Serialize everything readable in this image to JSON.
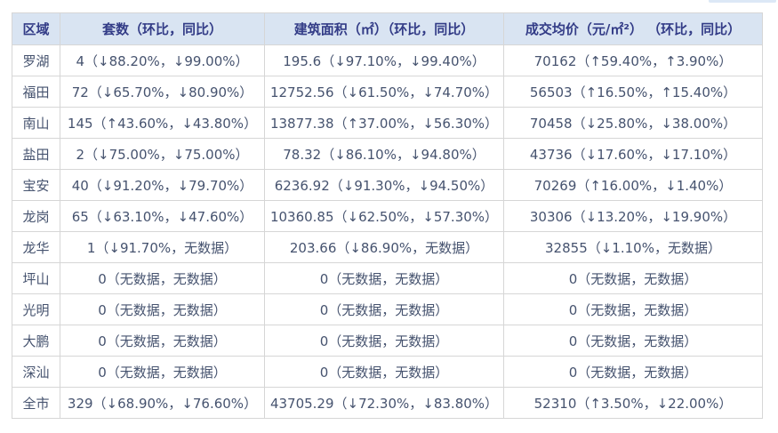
{
  "colors": {
    "header_bg": "#d9e4f2",
    "header_text": "#333c87",
    "body_text": "#46536f",
    "border": "#d6d6d6",
    "top_artifact": "#dce8f6"
  },
  "table": {
    "columns": [
      "区域",
      "套数（环比，同比）",
      "建筑面积（㎡）（环比，同比）",
      "成交均价（元/㎡²） （环比，同比）"
    ],
    "rows": [
      {
        "region": "罗湖",
        "units": "4（↓88.20%，↓99.00%）",
        "area": "195.6（↓97.10%，↓99.40%）",
        "price": "70162（↑59.40%，↑3.90%）"
      },
      {
        "region": "福田",
        "units": "72（↓65.70%，↓80.90%）",
        "area": "12752.56（↓61.50%，↓74.70%）",
        "price": "56503（↑16.50%，↑15.40%）"
      },
      {
        "region": "南山",
        "units": "145（↑43.60%，↓43.80%）",
        "area": "13877.38（↑37.00%，↓56.30%）",
        "price": "70458（↓25.80%，↓38.00%）"
      },
      {
        "region": "盐田",
        "units": "2（↓75.00%，↓75.00%）",
        "area": "78.32（↓86.10%，↓94.80%）",
        "price": "43736（↓17.60%，↓17.10%）"
      },
      {
        "region": "宝安",
        "units": "40（↓91.20%，↓79.70%）",
        "area": "6236.92（↓91.30%，↓94.50%）",
        "price": "70269（↑16.00%，↓1.40%）"
      },
      {
        "region": "龙岗",
        "units": "65（↓63.10%，↓47.60%）",
        "area": "10360.85（↓62.50%，↓57.30%）",
        "price": "30306（↓13.20%，↓19.90%）"
      },
      {
        "region": "龙华",
        "units": "1（↓91.70%，无数据）",
        "area": "203.66（↓86.90%，无数据）",
        "price": "32855（↓1.10%，无数据）"
      },
      {
        "region": "坪山",
        "units": "0（无数据，无数据）",
        "area": "0（无数据，无数据）",
        "price": "0（无数据，无数据）"
      },
      {
        "region": "光明",
        "units": "0（无数据，无数据）",
        "area": "0（无数据，无数据）",
        "price": "0（无数据，无数据）"
      },
      {
        "region": "大鹏",
        "units": "0（无数据，无数据）",
        "area": "0（无数据，无数据）",
        "price": "0（无数据，无数据）"
      },
      {
        "region": "深汕",
        "units": "0（无数据，无数据）",
        "area": "0（无数据，无数据）",
        "price": "0（无数据，无数据）"
      },
      {
        "region": "全市",
        "units": "329（↓68.90%，↓76.60%）",
        "area": "43705.29（↓72.30%，↓83.80%）",
        "price": "52310（↑3.50%，↓22.00%）"
      }
    ]
  },
  "chart_data": {
    "type": "table",
    "title": "",
    "columns": [
      "区域",
      "套数（环比，同比）",
      "建筑面积（㎡）（环比，同比）",
      "成交均价（元/㎡²） （环比，同比）"
    ],
    "rows": [
      [
        "罗湖",
        "4（↓88.20%，↓99.00%）",
        "195.6（↓97.10%，↓99.40%）",
        "70162（↑59.40%，↑3.90%）"
      ],
      [
        "福田",
        "72（↓65.70%，↓80.90%）",
        "12752.56（↓61.50%，↓74.70%）",
        "56503（↑16.50%，↑15.40%）"
      ],
      [
        "南山",
        "145（↑43.60%，↓43.80%）",
        "13877.38（↑37.00%，↓56.30%）",
        "70458（↓25.80%，↓38.00%）"
      ],
      [
        "盐田",
        "2（↓75.00%，↓75.00%）",
        "78.32（↓86.10%，↓94.80%）",
        "43736（↓17.60%，↓17.10%）"
      ],
      [
        "宝安",
        "40（↓91.20%，↓79.70%）",
        "6236.92（↓91.30%，↓94.50%）",
        "70269（↑16.00%，↓1.40%）"
      ],
      [
        "龙岗",
        "65（↓63.10%，↓47.60%）",
        "10360.85（↓62.50%，↓57.30%）",
        "30306（↓13.20%，↓19.90%）"
      ],
      [
        "龙华",
        "1（↓91.70%，无数据）",
        "203.66（↓86.90%，无数据）",
        "32855（↓1.10%，无数据）"
      ],
      [
        "坪山",
        "0（无数据，无数据）",
        "0（无数据，无数据）",
        "0（无数据，无数据）"
      ],
      [
        "光明",
        "0（无数据，无数据）",
        "0（无数据，无数据）",
        "0（无数据，无数据）"
      ],
      [
        "大鹏",
        "0（无数据，无数据）",
        "0（无数据，无数据）",
        "0（无数据，无数据）"
      ],
      [
        "深汕",
        "0（无数据，无数据）",
        "0（无数据，无数据）",
        "0（无数据，无数据）"
      ],
      [
        "全市",
        "329（↓68.90%，↓76.60%）",
        "43705.29（↓72.30%，↓83.80%）",
        "52310（↑3.50%，↓22.00%）"
      ]
    ]
  }
}
